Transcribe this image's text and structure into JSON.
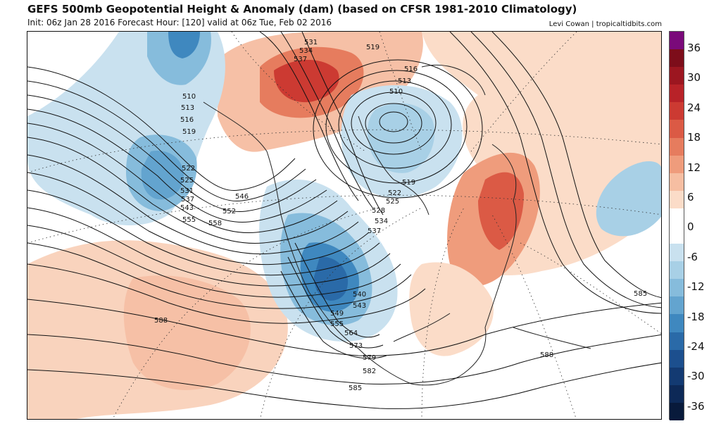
{
  "header": {
    "title": "GEFS 500mb Geopotential Height & Anomaly (dam) (based on CFSR 1981-2010 Climatology)",
    "subtitle": "Init: 06z Jan 28 2016   Forecast Hour: [120]   valid at 06z Tue, Feb 02 2016",
    "credit": "Levi Cowan | tropicaltidbits.com"
  },
  "colorbar": {
    "colors": [
      "#7a0a7a",
      "#7d0d1a",
      "#9c1620",
      "#b82228",
      "#cc3a32",
      "#db5a45",
      "#e67c5e",
      "#ef9c7c",
      "#f6bea2",
      "#fbdcc8",
      "#ffffff",
      "#ffffff",
      "#c9e1ef",
      "#a8d0e6",
      "#86bcdc",
      "#63a4cf",
      "#3f88bf",
      "#2a6aa8",
      "#1c4f8e",
      "#133a72",
      "#0d2957",
      "#081a3b"
    ],
    "ticks": [
      "36",
      "30",
      "24",
      "18",
      "12",
      "6",
      "0",
      "-6",
      "-12",
      "-18",
      "-24",
      "-30",
      "-36"
    ]
  },
  "contour_labels": [
    {
      "text": "531",
      "color": "dark"
    },
    {
      "text": "534",
      "color": "dark"
    },
    {
      "text": "537",
      "color": "dark"
    },
    {
      "text": "519",
      "color": "dark"
    },
    {
      "text": "516",
      "color": "dark"
    },
    {
      "text": "513",
      "color": "dark"
    },
    {
      "text": "510",
      "color": "dark"
    },
    {
      "text": "510",
      "color": "dark"
    },
    {
      "text": "513",
      "color": "dark"
    },
    {
      "text": "516",
      "color": "dark"
    },
    {
      "text": "519",
      "color": "dark"
    },
    {
      "text": "522",
      "color": "dark"
    },
    {
      "text": "525",
      "color": "dark"
    },
    {
      "text": "531",
      "color": "dark"
    },
    {
      "text": "537",
      "color": "dark"
    },
    {
      "text": "543",
      "color": "dark"
    },
    {
      "text": "546",
      "color": "dark"
    },
    {
      "text": "552",
      "color": "dark"
    },
    {
      "text": "555",
      "color": "dark"
    },
    {
      "text": "558",
      "color": "dark"
    },
    {
      "text": "519",
      "color": "dark"
    },
    {
      "text": "522",
      "color": "dark"
    },
    {
      "text": "525",
      "color": "dark"
    },
    {
      "text": "528",
      "color": "dark"
    },
    {
      "text": "534",
      "color": "dark"
    },
    {
      "text": "537",
      "color": "dark"
    },
    {
      "text": "540",
      "color": "dark"
    },
    {
      "text": "543",
      "color": "dark"
    },
    {
      "text": "549",
      "color": "dark"
    },
    {
      "text": "555",
      "color": "dark"
    },
    {
      "text": "564",
      "color": "dark"
    },
    {
      "text": "573",
      "color": "dark"
    },
    {
      "text": "579",
      "color": "dark"
    },
    {
      "text": "582",
      "color": "dark"
    },
    {
      "text": "585",
      "color": "dark"
    },
    {
      "text": "588",
      "color": "dark"
    },
    {
      "text": "585",
      "color": "dark"
    },
    {
      "text": "588",
      "color": "dark"
    }
  ]
}
